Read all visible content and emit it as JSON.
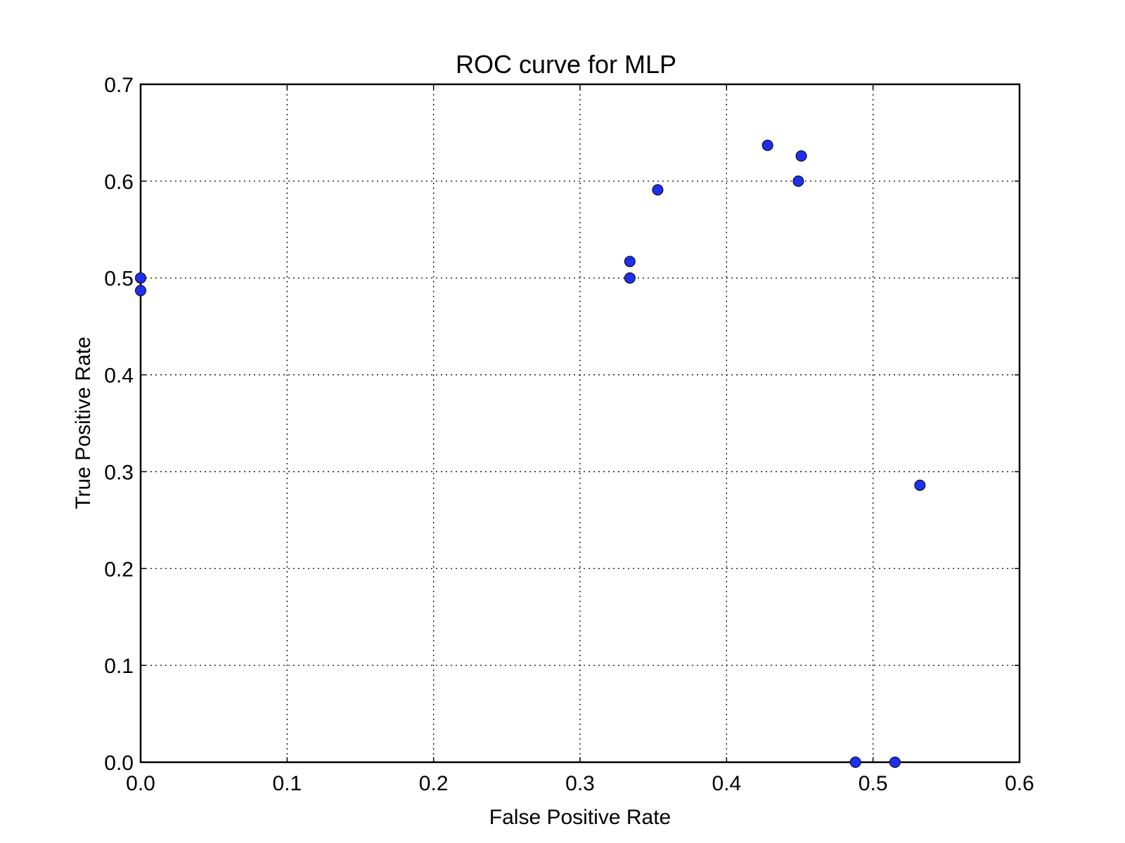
{
  "chart_data": {
    "type": "scatter",
    "title": "ROC curve for MLP",
    "xlabel": "False Positive Rate",
    "ylabel": "True Positive Rate",
    "xlim": [
      0.0,
      0.6
    ],
    "ylim": [
      0.0,
      0.7
    ],
    "x_ticks": [
      "0.0",
      "0.1",
      "0.2",
      "0.3",
      "0.4",
      "0.5",
      "0.6"
    ],
    "y_ticks": [
      "0.0",
      "0.1",
      "0.2",
      "0.3",
      "0.4",
      "0.5",
      "0.6",
      "0.7"
    ],
    "grid": true,
    "marker_color": "#1f2ff0",
    "series": [
      {
        "points": [
          {
            "x": 0.0,
            "y": 0.5
          },
          {
            "x": 0.0,
            "y": 0.487
          },
          {
            "x": 0.334,
            "y": 0.517
          },
          {
            "x": 0.334,
            "y": 0.5
          },
          {
            "x": 0.353,
            "y": 0.591
          },
          {
            "x": 0.428,
            "y": 0.637
          },
          {
            "x": 0.451,
            "y": 0.626
          },
          {
            "x": 0.449,
            "y": 0.6
          },
          {
            "x": 0.532,
            "y": 0.286
          },
          {
            "x": 0.488,
            "y": 0.0
          },
          {
            "x": 0.515,
            "y": 0.0
          }
        ]
      }
    ]
  }
}
